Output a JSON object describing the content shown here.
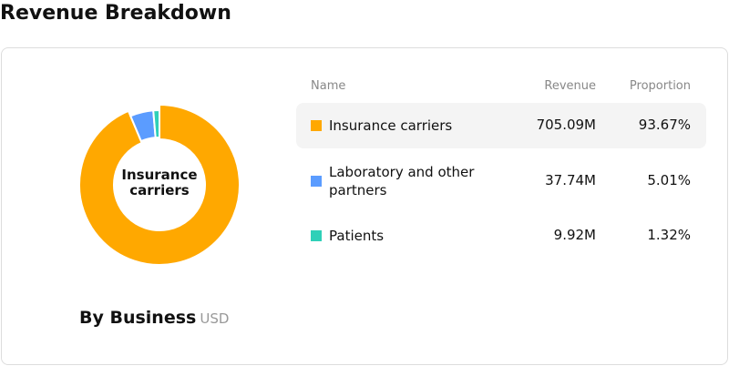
{
  "title": "Revenue Breakdown",
  "chart_data": {
    "type": "pie",
    "title": "By Business",
    "unit": "USD",
    "center_label": "Insurance carriers",
    "categories": [
      "Insurance carriers",
      "Laboratory and other partners",
      "Patients"
    ],
    "colors": [
      "#ffa800",
      "#5b9cff",
      "#2fd0b8"
    ],
    "values": [
      93.67,
      5.01,
      1.32
    ],
    "value_labels": [
      "93.67%",
      "5.01%",
      "1.32%"
    ]
  },
  "table": {
    "headers": [
      "Name",
      "Revenue",
      "Proportion"
    ],
    "revenue": [
      "705.09M",
      "37.74M",
      "9.92M"
    ]
  }
}
